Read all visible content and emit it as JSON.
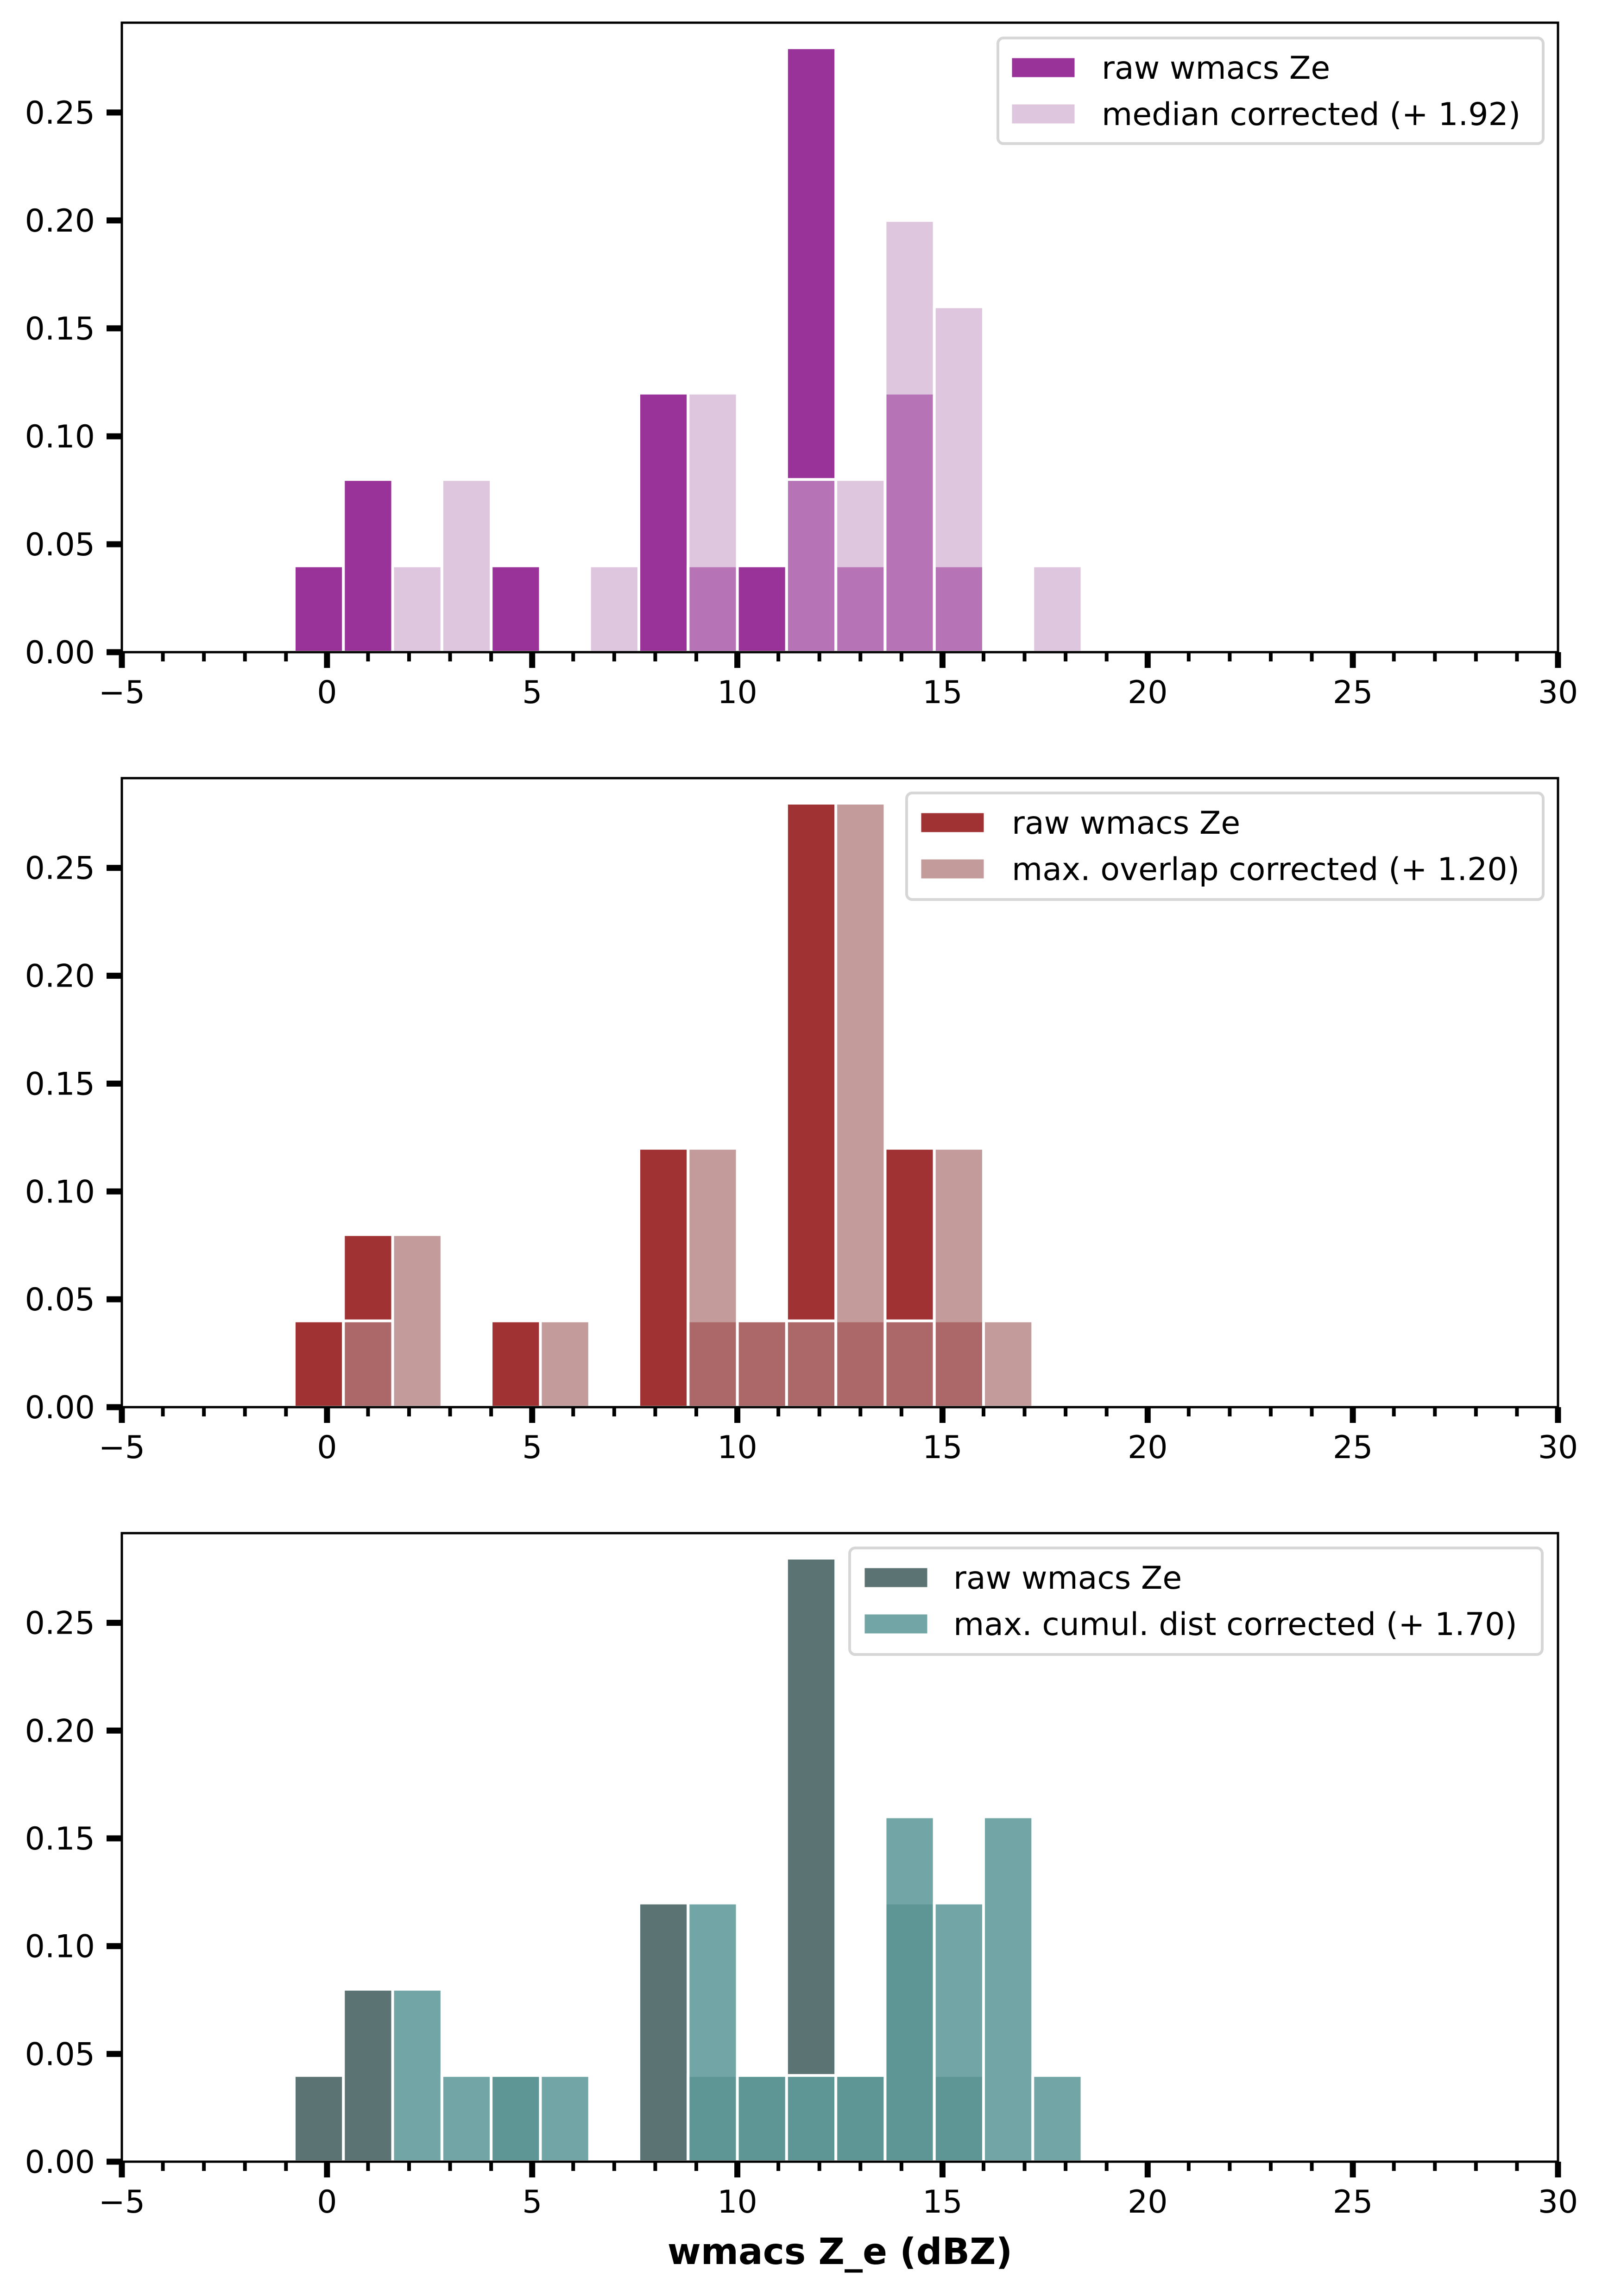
{
  "chart_data": [
    {
      "type": "bar",
      "subtype": "overlaid-histogram",
      "title": "",
      "xlabel": "",
      "ylabel": "",
      "xlim": [
        -5,
        30
      ],
      "ylim": [
        0,
        0.2916
      ],
      "xticks": [
        "−5",
        "0",
        "5",
        "10",
        "15",
        "20",
        "25",
        "30"
      ],
      "xtick_values": [
        -5,
        0,
        5,
        10,
        15,
        20,
        25,
        30
      ],
      "yticks": [
        "0.00",
        "0.05",
        "0.10",
        "0.15",
        "0.20",
        "0.25"
      ],
      "ytick_values": [
        0,
        0.05,
        0.1,
        0.15,
        0.2,
        0.25
      ],
      "grid": false,
      "legend_position": "top-right",
      "bin_start": -0.8,
      "bin_width": 1.2,
      "series": [
        {
          "name": "raw wmacs Ze",
          "color": "#993399",
          "opacity": 1.0,
          "values": [
            0.04,
            0.08,
            0,
            0,
            0.04,
            0,
            0,
            0.12,
            0.04,
            0.04,
            0.28,
            0.04,
            0.12,
            0.04,
            0,
            0,
            0
          ]
        },
        {
          "name": "median corrected (+ 1.92)",
          "color": "#c9a0c9",
          "opacity": 0.6,
          "values": [
            0,
            0,
            0.04,
            0.08,
            0,
            0,
            0.04,
            0,
            0.12,
            0,
            0.08,
            0.08,
            0.2,
            0.16,
            0,
            0.04,
            0
          ]
        }
      ]
    },
    {
      "type": "bar",
      "subtype": "overlaid-histogram",
      "title": "",
      "xlabel": "",
      "ylabel": "",
      "xlim": [
        -5,
        30
      ],
      "ylim": [
        0,
        0.2916
      ],
      "xticks": [
        "−5",
        "0",
        "5",
        "10",
        "15",
        "20",
        "25",
        "30"
      ],
      "xtick_values": [
        -5,
        0,
        5,
        10,
        15,
        20,
        25,
        30
      ],
      "yticks": [
        "0.00",
        "0.05",
        "0.10",
        "0.15",
        "0.20",
        "0.25"
      ],
      "ytick_values": [
        0,
        0.05,
        0.1,
        0.15,
        0.2,
        0.25
      ],
      "grid": false,
      "legend_position": "top-right",
      "bin_start": -0.8,
      "bin_width": 1.2,
      "series": [
        {
          "name": "raw wmacs Ze",
          "color": "#a03234",
          "opacity": 1.0,
          "values": [
            0.04,
            0.08,
            0,
            0,
            0.04,
            0,
            0,
            0.12,
            0.04,
            0.04,
            0.28,
            0.04,
            0.12,
            0.04,
            0,
            0,
            0
          ]
        },
        {
          "name": "max. overlap corrected (+ 1.20)",
          "color": "#b07a7a",
          "opacity": 0.75,
          "values": [
            0,
            0.04,
            0.08,
            0,
            0,
            0.04,
            0,
            0,
            0.12,
            0.04,
            0.04,
            0.28,
            0.04,
            0.12,
            0.04,
            0,
            0
          ]
        }
      ]
    },
    {
      "type": "bar",
      "subtype": "overlaid-histogram",
      "title": "",
      "xlabel": "wmacs Z_e (dBZ)",
      "ylabel": "",
      "xlim": [
        -5,
        30
      ],
      "ylim": [
        0,
        0.2916
      ],
      "xticks": [
        "−5",
        "0",
        "5",
        "10",
        "15",
        "20",
        "25",
        "30"
      ],
      "xtick_values": [
        -5,
        0,
        5,
        10,
        15,
        20,
        25,
        30
      ],
      "yticks": [
        "0.00",
        "0.05",
        "0.10",
        "0.15",
        "0.20",
        "0.25"
      ],
      "ytick_values": [
        0,
        0.05,
        0.1,
        0.15,
        0.2,
        0.25
      ],
      "grid": false,
      "legend_position": "top-right",
      "bin_start": -0.8,
      "bin_width": 1.2,
      "series": [
        {
          "name": "raw wmacs Ze",
          "color": "#5b7372",
          "opacity": 1.0,
          "values": [
            0.04,
            0.08,
            0,
            0,
            0.04,
            0,
            0,
            0.12,
            0.04,
            0.04,
            0.28,
            0.04,
            0.12,
            0.04,
            0,
            0,
            0
          ]
        },
        {
          "name": "max. cumul. dist corrected (+ 1.70)",
          "color": "#5f9a9a",
          "opacity": 0.88,
          "values": [
            0,
            0,
            0.08,
            0.04,
            0.04,
            0.04,
            0,
            0,
            0.12,
            0.04,
            0.04,
            0.04,
            0.16,
            0.12,
            0.16,
            0.04,
            0
          ]
        }
      ]
    }
  ],
  "figure": {
    "xlabel": "wmacs Z_e (dBZ)"
  }
}
